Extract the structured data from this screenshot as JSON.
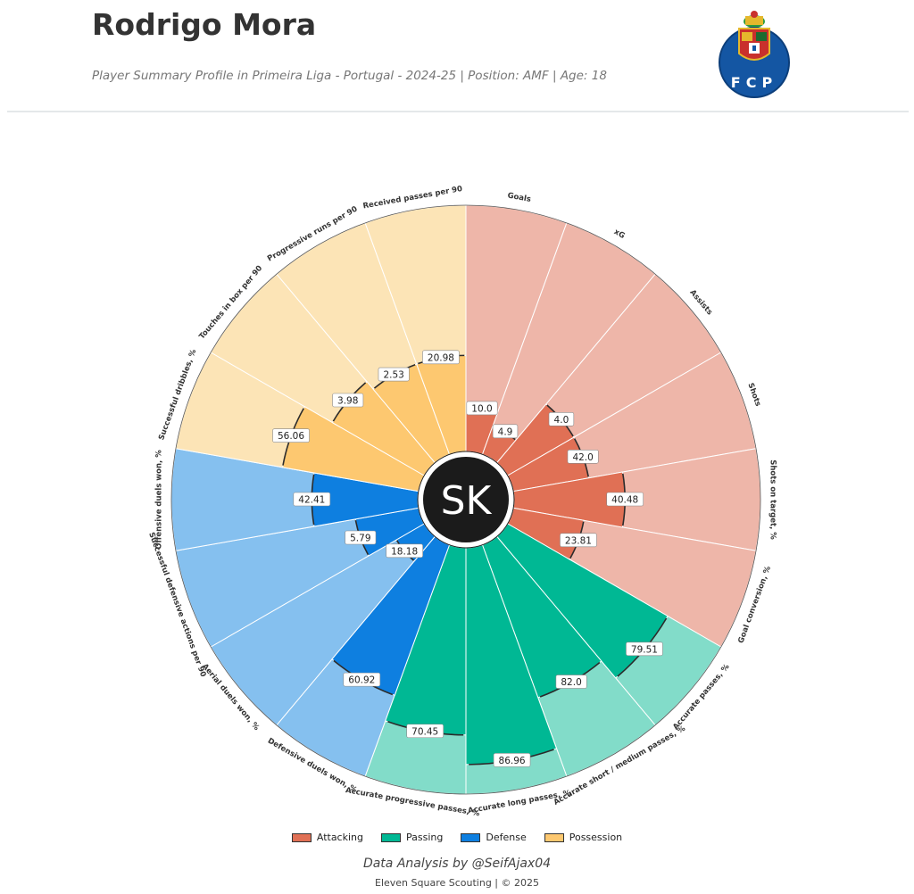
{
  "header": {
    "player_name": "Rodrigo Mora",
    "subtitle": "Player Summary Profile in Primeira Liga - Portugal - 2024-25 | Position: AMF | Age: 18",
    "crest_text": "FCP"
  },
  "center_badge": "SK",
  "chart_data": {
    "type": "pizza",
    "scale": [
      0,
      100
    ],
    "categories": [
      {
        "name": "Attacking",
        "color": "#e07055",
        "light": "#eeb6a9"
      },
      {
        "name": "Passing",
        "color": "#00b894",
        "light": "#82dcc9"
      },
      {
        "name": "Defense",
        "color": "#0e7fe0",
        "light": "#85c0ef"
      },
      {
        "name": "Possession",
        "color": "#fdc870",
        "light": "#fce4b6"
      }
    ],
    "metrics": [
      {
        "label": "Goals",
        "value": "10.0",
        "percentile": 18,
        "category": "Attacking"
      },
      {
        "label": "xG",
        "value": "4.9",
        "percentile": 12,
        "category": "Attacking"
      },
      {
        "label": "Assists",
        "value": "4.0",
        "percentile": 31,
        "category": "Attacking"
      },
      {
        "label": "Shots",
        "value": "42.0",
        "percentile": 31,
        "category": "Attacking"
      },
      {
        "label": "Shots on target, %",
        "value": "40.48",
        "percentile": 45,
        "category": "Attacking"
      },
      {
        "label": "Goal conversion, %",
        "value": "23.81",
        "percentile": 29,
        "category": "Attacking"
      },
      {
        "label": "Accurate passes, %",
        "value": "79.51",
        "percentile": 75,
        "category": "Passing"
      },
      {
        "label": "Accurate short / medium passes, %",
        "value": "82.0",
        "percentile": 66,
        "category": "Passing"
      },
      {
        "label": "Accurate long passes, %",
        "value": "86.96",
        "percentile": 88,
        "category": "Passing"
      },
      {
        "label": "Accurate progressive passes, %",
        "value": "70.45",
        "percentile": 76,
        "category": "Passing"
      },
      {
        "label": "Defensive duels won, %",
        "value": "60.92",
        "percentile": 65,
        "category": "Defense"
      },
      {
        "label": "Aerial duels won, %",
        "value": "18.18",
        "percentile": 13,
        "category": "Defense"
      },
      {
        "label": "Successful defensive actions per 90",
        "value": "5.79",
        "percentile": 26,
        "category": "Defense"
      },
      {
        "label": "Offensive duels won, %",
        "value": "42.41",
        "percentile": 43,
        "category": "Defense"
      },
      {
        "label": "Successful dribbles, %",
        "value": "56.06",
        "percentile": 56,
        "category": "Possession"
      },
      {
        "label": "Touches in box per 90",
        "value": "3.98",
        "percentile": 43,
        "category": "Possession"
      },
      {
        "label": "Progressive runs per 90",
        "value": "2.53",
        "percentile": 39,
        "category": "Possession"
      },
      {
        "label": "Received passes per 90",
        "value": "20.98",
        "percentile": 39,
        "category": "Possession"
      }
    ]
  },
  "legend": [
    "Attacking",
    "Passing",
    "Defense",
    "Possession"
  ],
  "credit": "Data Analysis by @SeifAjax04",
  "footer": "Eleven Square Scouting | © 2025"
}
